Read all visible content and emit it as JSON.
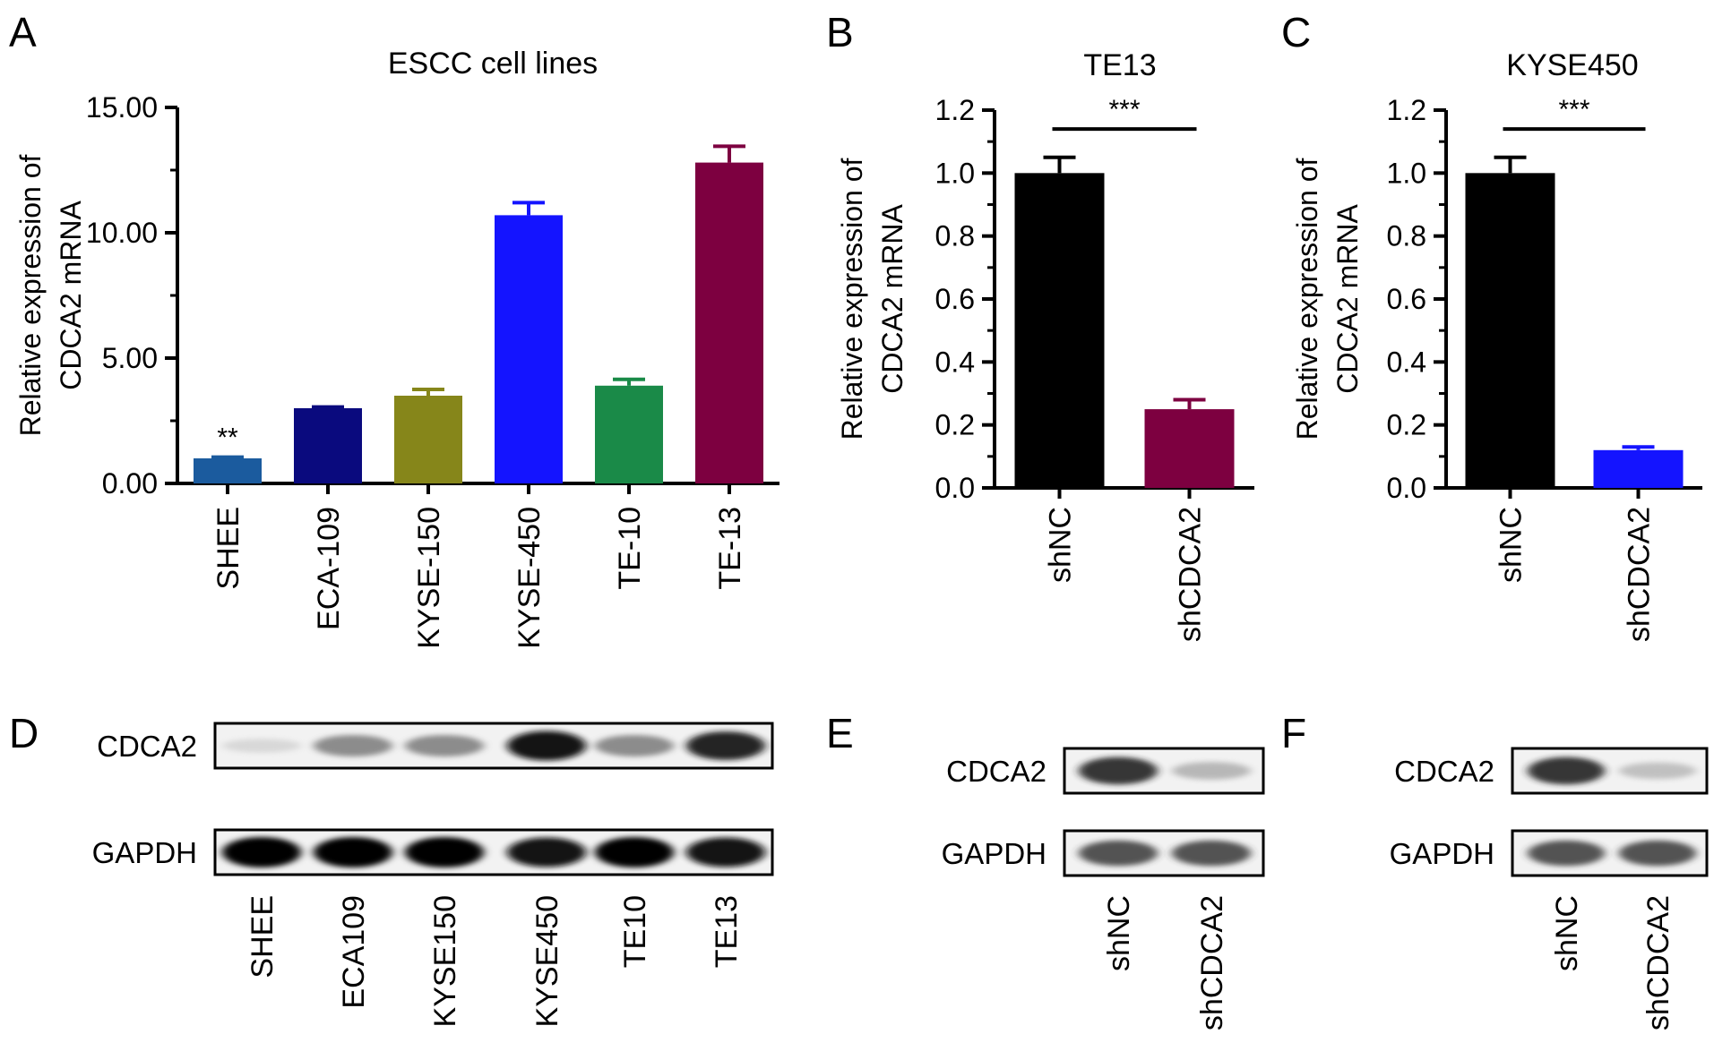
{
  "panel_letters": [
    "A",
    "B",
    "C",
    "D",
    "E",
    "F"
  ],
  "chart_data": [
    {
      "type": "bar",
      "panel": "A",
      "title": "ESCC cell lines",
      "ylabel": [
        "Relative expression of",
        "CDCA2 mRNA"
      ],
      "xlabel": "",
      "ylim": [
        0,
        15
      ],
      "yticks": [
        "0.00",
        "5.00",
        "10.00",
        "15.00"
      ],
      "categories": [
        "SHEE",
        "ECA-109",
        "KYSE-150",
        "KYSE-450",
        "TE-10",
        "TE-13"
      ],
      "values": [
        1.0,
        3.0,
        3.5,
        10.7,
        3.9,
        12.8
      ],
      "errors": [
        0.05,
        0.05,
        0.25,
        0.5,
        0.25,
        0.65
      ],
      "colors": [
        "#1b5b9e",
        "#0a0a7e",
        "#86861a",
        "#1414ff",
        "#1a8a48",
        "#7d0040"
      ],
      "annotations": [
        {
          "category": "SHEE",
          "text": "**"
        }
      ],
      "grid": false,
      "legend": "none"
    },
    {
      "type": "bar",
      "panel": "B",
      "title": "TE13",
      "ylabel": [
        "Relative expression of",
        "CDCA2 mRNA"
      ],
      "xlabel": "",
      "ylim": [
        0,
        1.2
      ],
      "yticks": [
        "0.0",
        "0.2",
        "0.4",
        "0.6",
        "0.8",
        "1.0",
        "1.2"
      ],
      "categories": [
        "shNC",
        "shCDCA2"
      ],
      "values": [
        1.0,
        0.25
      ],
      "errors": [
        0.05,
        0.03
      ],
      "colors": [
        "#000000",
        "#7d0040"
      ],
      "significance": "***",
      "grid": false,
      "legend": "none"
    },
    {
      "type": "bar",
      "panel": "C",
      "title": "KYSE450",
      "ylabel": [
        "Relative expression of",
        "CDCA2 mRNA"
      ],
      "xlabel": "",
      "ylim": [
        0,
        1.2
      ],
      "yticks": [
        "0.0",
        "0.2",
        "0.4",
        "0.6",
        "0.8",
        "1.0",
        "1.2"
      ],
      "categories": [
        "shNC",
        "shCDCA2"
      ],
      "values": [
        1.0,
        0.12
      ],
      "errors": [
        0.05,
        0.01
      ],
      "colors": [
        "#000000",
        "#1414ff"
      ],
      "significance": "***",
      "grid": false,
      "legend": "none"
    }
  ],
  "blots": [
    {
      "panel": "D",
      "rows": [
        {
          "label": "CDCA2",
          "intensities": [
            0.15,
            0.55,
            0.55,
            0.95,
            0.55,
            0.9
          ]
        },
        {
          "label": "GAPDH",
          "intensities": [
            1.0,
            1.0,
            1.0,
            0.95,
            1.0,
            0.95
          ]
        }
      ],
      "lanes": [
        "SHEE",
        "ECA109",
        "KYSE150",
        "KYSE450",
        "TE10",
        "TE13"
      ]
    },
    {
      "panel": "E",
      "rows": [
        {
          "label": "CDCA2",
          "intensities": [
            0.85,
            0.35
          ]
        },
        {
          "label": "GAPDH",
          "intensities": [
            0.75,
            0.75
          ]
        }
      ],
      "lanes": [
        "shNC",
        "shCDCA2"
      ]
    },
    {
      "panel": "F",
      "rows": [
        {
          "label": "CDCA2",
          "intensities": [
            0.85,
            0.3
          ]
        },
        {
          "label": "GAPDH",
          "intensities": [
            0.75,
            0.75
          ]
        }
      ],
      "lanes": [
        "shNC",
        "shCDCA2"
      ]
    }
  ]
}
